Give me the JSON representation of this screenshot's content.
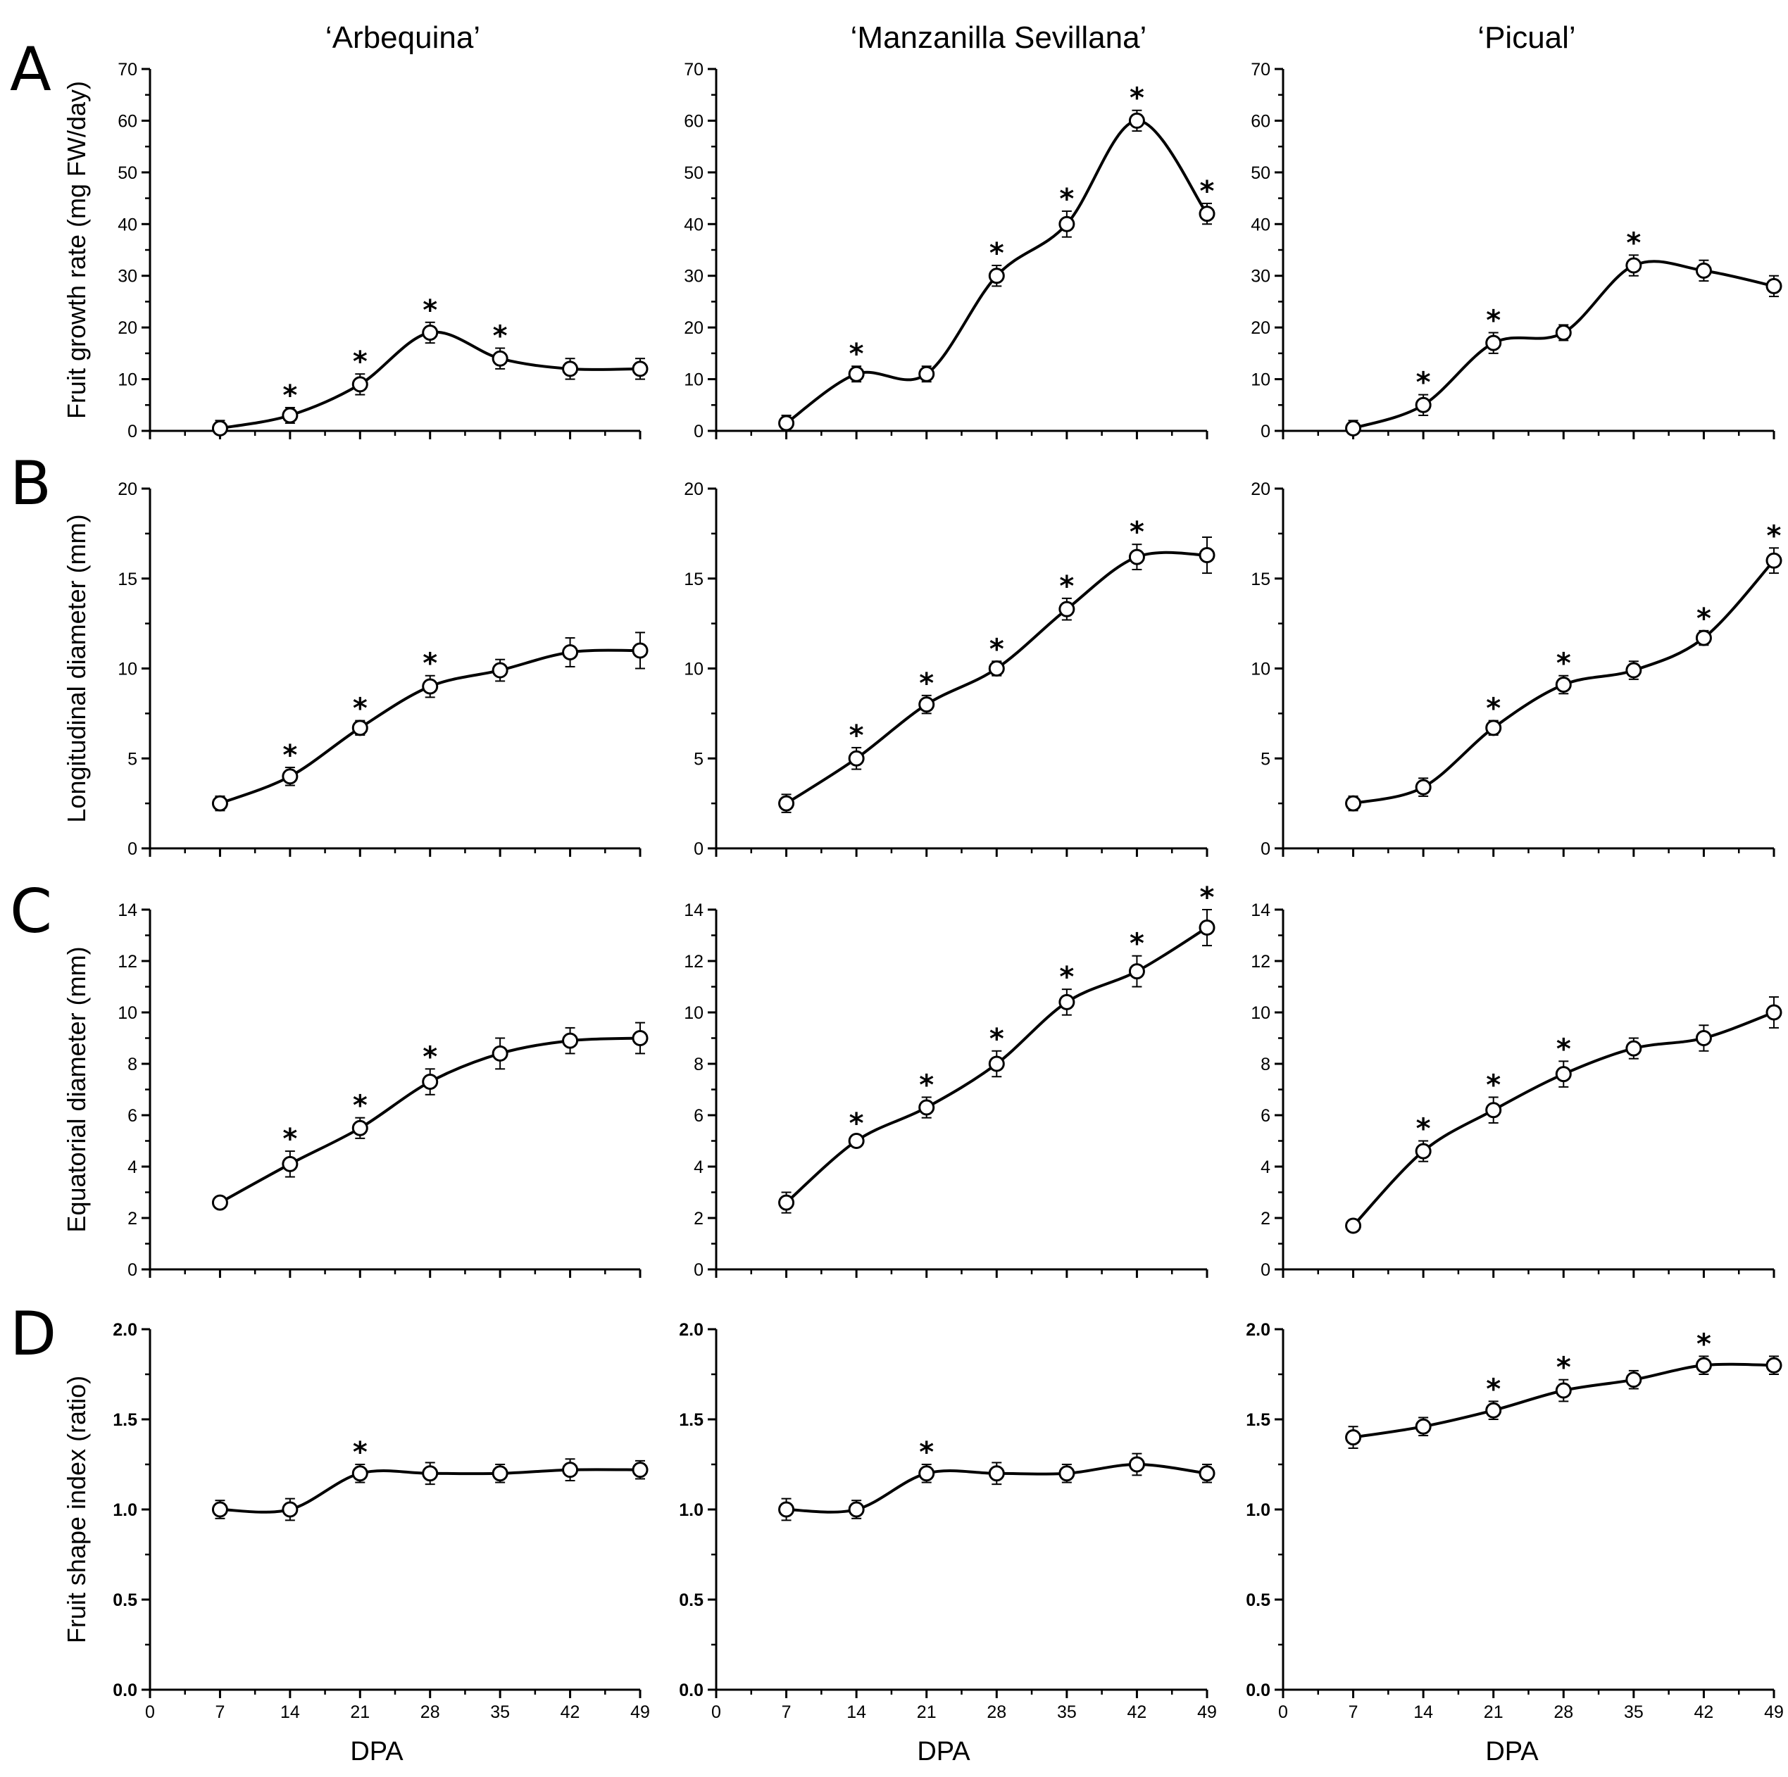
{
  "figure": {
    "column_titles": [
      "‘Arbequina’",
      "‘Manzanilla Sevillana’",
      "‘Picual’"
    ],
    "row_letters": [
      "A",
      "B",
      "C",
      "D"
    ],
    "x_axis_label": "DPA"
  },
  "chart_data": [
    {
      "type": "line",
      "row": "A",
      "column": "‘Arbequina’",
      "ylabel": "Fruit growth rate (mg FW/day)",
      "xlabel": "DPA",
      "xlim": [
        0,
        49
      ],
      "xticks": [
        0,
        7,
        14,
        21,
        28,
        35,
        42,
        49
      ],
      "ylim": [
        0,
        70
      ],
      "yticks": [
        0,
        10,
        20,
        30,
        40,
        50,
        60,
        70
      ],
      "ytick_labels": [
        "0",
        "10",
        "20",
        "30",
        "40",
        "50",
        "60",
        "70"
      ],
      "x": [
        7,
        14,
        21,
        28,
        35,
        42,
        49
      ],
      "values": [
        0.5,
        3,
        9,
        19,
        14,
        12,
        12
      ],
      "errors": [
        1.5,
        1.5,
        2,
        2,
        2,
        2,
        2
      ],
      "significant": [
        false,
        true,
        true,
        true,
        true,
        false,
        false
      ]
    },
    {
      "type": "line",
      "row": "A",
      "column": "‘Manzanilla Sevillana’",
      "ylabel": "",
      "xlabel": "DPA",
      "xlim": [
        0,
        49
      ],
      "xticks": [
        0,
        7,
        14,
        21,
        28,
        35,
        42,
        49
      ],
      "ylim": [
        0,
        70
      ],
      "yticks": [
        0,
        10,
        20,
        30,
        40,
        50,
        60,
        70
      ],
      "ytick_labels": [
        "0",
        "10",
        "20",
        "30",
        "40",
        "50",
        "60",
        "70"
      ],
      "x": [
        7,
        14,
        21,
        28,
        35,
        42,
        49
      ],
      "values": [
        1.5,
        11,
        11,
        30,
        40,
        60,
        42
      ],
      "errors": [
        1.5,
        1.5,
        1.5,
        2,
        2.5,
        2,
        2
      ],
      "significant": [
        false,
        true,
        false,
        true,
        true,
        true,
        true
      ]
    },
    {
      "type": "line",
      "row": "A",
      "column": "‘Picual’",
      "ylabel": "",
      "xlabel": "DPA",
      "xlim": [
        0,
        49
      ],
      "xticks": [
        0,
        7,
        14,
        21,
        28,
        35,
        42,
        49
      ],
      "ylim": [
        0,
        70
      ],
      "yticks": [
        0,
        10,
        20,
        30,
        40,
        50,
        60,
        70
      ],
      "ytick_labels": [
        "0",
        "10",
        "20",
        "30",
        "40",
        "50",
        "60",
        "70"
      ],
      "x": [
        7,
        14,
        21,
        28,
        35,
        42,
        49
      ],
      "values": [
        0.5,
        5,
        17,
        19,
        32,
        31,
        28
      ],
      "errors": [
        1.5,
        2,
        2,
        1.5,
        2,
        2,
        2
      ],
      "significant": [
        false,
        true,
        true,
        false,
        true,
        false,
        false
      ]
    },
    {
      "type": "line",
      "row": "B",
      "column": "‘Arbequina’",
      "ylabel": "Longitudinal diameter (mm)",
      "xlabel": "DPA",
      "xlim": [
        0,
        49
      ],
      "xticks": [
        0,
        7,
        14,
        21,
        28,
        35,
        42,
        49
      ],
      "ylim": [
        0,
        20
      ],
      "yticks": [
        0,
        5,
        10,
        15,
        20
      ],
      "ytick_labels": [
        "0",
        "5",
        "10",
        "15",
        "20"
      ],
      "x": [
        7,
        14,
        21,
        28,
        35,
        42,
        49
      ],
      "values": [
        2.5,
        4,
        6.7,
        9,
        9.9,
        10.9,
        11
      ],
      "errors": [
        0.4,
        0.5,
        0.4,
        0.6,
        0.6,
        0.8,
        1.0
      ],
      "significant": [
        false,
        true,
        true,
        true,
        false,
        false,
        false
      ]
    },
    {
      "type": "line",
      "row": "B",
      "column": "‘Manzanilla Sevillana’",
      "ylabel": "",
      "xlabel": "DPA",
      "xlim": [
        0,
        49
      ],
      "xticks": [
        0,
        7,
        14,
        21,
        28,
        35,
        42,
        49
      ],
      "ylim": [
        0,
        20
      ],
      "yticks": [
        0,
        5,
        10,
        15,
        20
      ],
      "ytick_labels": [
        "0",
        "5",
        "10",
        "15",
        "20"
      ],
      "x": [
        7,
        14,
        21,
        28,
        35,
        42,
        49
      ],
      "values": [
        2.5,
        5,
        8,
        10,
        13.3,
        16.2,
        16.3
      ],
      "errors": [
        0.5,
        0.6,
        0.5,
        0.4,
        0.6,
        0.7,
        1.0
      ],
      "significant": [
        false,
        true,
        true,
        true,
        true,
        true,
        false
      ]
    },
    {
      "type": "line",
      "row": "B",
      "column": "‘Picual’",
      "ylabel": "",
      "xlabel": "DPA",
      "xlim": [
        0,
        49
      ],
      "xticks": [
        0,
        7,
        14,
        21,
        28,
        35,
        42,
        49
      ],
      "ylim": [
        0,
        20
      ],
      "yticks": [
        0,
        5,
        10,
        15,
        20
      ],
      "ytick_labels": [
        "0",
        "5",
        "10",
        "15",
        "20"
      ],
      "x": [
        7,
        14,
        21,
        28,
        35,
        42,
        49
      ],
      "values": [
        2.5,
        3.4,
        6.7,
        9.1,
        9.9,
        11.7,
        16
      ],
      "errors": [
        0.4,
        0.5,
        0.4,
        0.5,
        0.5,
        0.4,
        0.7
      ],
      "significant": [
        false,
        false,
        true,
        true,
        false,
        true,
        true
      ]
    },
    {
      "type": "line",
      "row": "C",
      "column": "‘Arbequina’",
      "ylabel": "Equatorial diameter (mm)",
      "xlabel": "DPA",
      "xlim": [
        0,
        49
      ],
      "xticks": [
        0,
        7,
        14,
        21,
        28,
        35,
        42,
        49
      ],
      "ylim": [
        0,
        14
      ],
      "yticks": [
        0,
        2,
        4,
        6,
        8,
        10,
        12,
        14
      ],
      "ytick_labels": [
        "0",
        "2",
        "4",
        "6",
        "8",
        "10",
        "12",
        "14"
      ],
      "x": [
        7,
        14,
        21,
        28,
        35,
        42,
        49
      ],
      "values": [
        2.6,
        4.1,
        5.5,
        7.3,
        8.4,
        8.9,
        9
      ],
      "errors": [
        0.2,
        0.5,
        0.4,
        0.5,
        0.6,
        0.5,
        0.6
      ],
      "significant": [
        false,
        true,
        true,
        true,
        false,
        false,
        false
      ]
    },
    {
      "type": "line",
      "row": "C",
      "column": "‘Manzanilla Sevillana’",
      "ylabel": "",
      "xlabel": "DPA",
      "xlim": [
        0,
        49
      ],
      "xticks": [
        0,
        7,
        14,
        21,
        28,
        35,
        42,
        49
      ],
      "ylim": [
        0,
        14
      ],
      "yticks": [
        0,
        2,
        4,
        6,
        8,
        10,
        12,
        14
      ],
      "ytick_labels": [
        "0",
        "2",
        "4",
        "6",
        "8",
        "10",
        "12",
        "14"
      ],
      "x": [
        7,
        14,
        21,
        28,
        35,
        42,
        49
      ],
      "values": [
        2.6,
        5,
        6.3,
        8,
        10.4,
        11.6,
        13.3
      ],
      "errors": [
        0.4,
        0.2,
        0.4,
        0.5,
        0.5,
        0.6,
        0.7
      ],
      "significant": [
        false,
        true,
        true,
        true,
        true,
        true,
        true
      ]
    },
    {
      "type": "line",
      "row": "C",
      "column": "‘Picual’",
      "ylabel": "",
      "xlabel": "DPA",
      "xlim": [
        0,
        49
      ],
      "xticks": [
        0,
        7,
        14,
        21,
        28,
        35,
        42,
        49
      ],
      "ylim": [
        0,
        14
      ],
      "yticks": [
        0,
        2,
        4,
        6,
        8,
        10,
        12,
        14
      ],
      "ytick_labels": [
        "0",
        "2",
        "4",
        "6",
        "8",
        "10",
        "12",
        "14"
      ],
      "x": [
        7,
        14,
        21,
        28,
        35,
        42,
        49
      ],
      "values": [
        1.7,
        4.6,
        6.2,
        7.6,
        8.6,
        9,
        10
      ],
      "errors": [
        0.2,
        0.4,
        0.5,
        0.5,
        0.4,
        0.5,
        0.6
      ],
      "significant": [
        false,
        true,
        true,
        true,
        false,
        false,
        false
      ]
    },
    {
      "type": "line",
      "row": "D",
      "column": "‘Arbequina’",
      "ylabel": "Fruit shape index (ratio)",
      "xlabel": "DPA",
      "xlim": [
        0,
        49
      ],
      "xticks": [
        0,
        7,
        14,
        21,
        28,
        35,
        42,
        49
      ],
      "ylim": [
        0,
        2
      ],
      "yticks": [
        0,
        0.5,
        1,
        1.5,
        2
      ],
      "ytick_labels": [
        "0.0",
        "0.5",
        "1.0",
        "1.5",
        "2.0"
      ],
      "x": [
        7,
        14,
        21,
        28,
        35,
        42,
        49
      ],
      "values": [
        1.0,
        1.0,
        1.2,
        1.2,
        1.2,
        1.22,
        1.22
      ],
      "errors": [
        0.05,
        0.06,
        0.05,
        0.06,
        0.05,
        0.06,
        0.05
      ],
      "significant": [
        false,
        false,
        true,
        false,
        false,
        false,
        false
      ]
    },
    {
      "type": "line",
      "row": "D",
      "column": "‘Manzanilla Sevillana’",
      "ylabel": "",
      "xlabel": "DPA",
      "xlim": [
        0,
        49
      ],
      "xticks": [
        0,
        7,
        14,
        21,
        28,
        35,
        42,
        49
      ],
      "ylim": [
        0,
        2
      ],
      "yticks": [
        0,
        0.5,
        1,
        1.5,
        2
      ],
      "ytick_labels": [
        "0.0",
        "0.5",
        "1.0",
        "1.5",
        "2.0"
      ],
      "x": [
        7,
        14,
        21,
        28,
        35,
        42,
        49
      ],
      "values": [
        1.0,
        1.0,
        1.2,
        1.2,
        1.2,
        1.25,
        1.2
      ],
      "errors": [
        0.06,
        0.05,
        0.05,
        0.06,
        0.05,
        0.06,
        0.05
      ],
      "significant": [
        false,
        false,
        true,
        false,
        false,
        false,
        false
      ]
    },
    {
      "type": "line",
      "row": "D",
      "column": "‘Picual’",
      "ylabel": "",
      "xlabel": "DPA",
      "xlim": [
        0,
        49
      ],
      "xticks": [
        0,
        7,
        14,
        21,
        28,
        35,
        42,
        49
      ],
      "ylim": [
        0,
        2
      ],
      "yticks": [
        0,
        0.5,
        1,
        1.5,
        2
      ],
      "ytick_labels": [
        "0.0",
        "0.5",
        "1.0",
        "1.5",
        "2.0"
      ],
      "x": [
        7,
        14,
        21,
        28,
        35,
        42,
        49
      ],
      "values": [
        1.4,
        1.46,
        1.55,
        1.66,
        1.72,
        1.8,
        1.8
      ],
      "errors": [
        0.06,
        0.05,
        0.05,
        0.06,
        0.05,
        0.05,
        0.05
      ],
      "significant": [
        false,
        false,
        true,
        true,
        false,
        true,
        false
      ]
    }
  ]
}
